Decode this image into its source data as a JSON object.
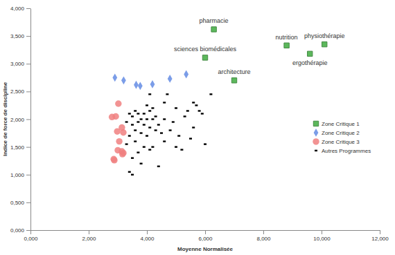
{
  "chart_data": {
    "type": "scatter",
    "x_label": "Moyenne Normalisée",
    "y_label": "Indice de force de discipline",
    "xlim": [
      0,
      12
    ],
    "ylim": [
      0,
      4
    ],
    "xticks": [
      {
        "value": 0,
        "label": "0,000"
      },
      {
        "value": 2,
        "label": "2,000"
      },
      {
        "value": 4,
        "label": "4,000"
      },
      {
        "value": 6,
        "label": "6,000"
      },
      {
        "value": 8,
        "label": "8,000"
      },
      {
        "value": 10,
        "label": "10,000"
      },
      {
        "value": 12,
        "label": "12,000"
      }
    ],
    "yticks": [
      {
        "value": 0,
        "label": "0,000"
      },
      {
        "value": 0.5,
        "label": "0,500"
      },
      {
        "value": 1,
        "label": "1,000"
      },
      {
        "value": 1.5,
        "label": "1,500"
      },
      {
        "value": 2,
        "label": "2,000"
      },
      {
        "value": 2.5,
        "label": "2,500"
      },
      {
        "value": 3,
        "label": "3,000"
      },
      {
        "value": 3.5,
        "label": "3,500"
      },
      {
        "value": 4,
        "label": "4,000"
      }
    ],
    "grid": false,
    "legend": "right",
    "series": [
      {
        "name": "Zone Critique 1",
        "color": "#5cb85c",
        "marker": "square",
        "x": [
          6.3,
          8.8,
          10.1,
          9.6,
          6.0,
          7.0
        ],
        "values": [
          3.62,
          3.33,
          3.35,
          3.18,
          3.11,
          2.7
        ],
        "labels": [
          "pharmacie",
          "nutrition",
          "physiothérapie",
          "ergothérapie",
          "sciences biomédicales",
          "architecture"
        ]
      },
      {
        "name": "Zone Critique 2",
        "color": "#7b9de8",
        "marker": "diamond",
        "x": [
          2.9,
          3.2,
          3.63,
          3.77,
          4.19,
          4.79,
          5.35
        ],
        "values": [
          2.75,
          2.7,
          2.62,
          2.6,
          2.63,
          2.73,
          2.81
        ]
      },
      {
        "name": "Zone Critique 3",
        "color": "#f08080",
        "marker": "circle",
        "x": [
          3.02,
          2.8,
          2.93,
          3.14,
          2.98,
          3.19,
          3.05,
          3.0,
          3.14,
          3.19,
          2.88,
          2.86,
          3.16
        ],
        "values": [
          2.28,
          2.04,
          2.05,
          1.85,
          1.78,
          1.76,
          1.6,
          1.44,
          1.42,
          1.39,
          1.26,
          1.28,
          1.37
        ]
      },
      {
        "name": "Autres Programmes",
        "color": "#000000",
        "marker": "dash",
        "x": [
          3.4,
          3.5,
          3.8,
          4.4,
          3.5,
          3.7,
          3.3,
          3.6,
          3.9,
          4.1,
          4.2,
          4.6,
          5.0,
          5.2,
          6.0,
          5.5,
          3.4,
          3.6,
          3.8,
          4.0,
          4.3,
          4.5,
          4.8,
          5.1,
          3.5,
          3.7,
          3.9,
          4.1,
          4.2,
          4.4,
          4.6,
          3.5,
          3.7,
          3.9,
          4.0,
          4.1,
          3.3,
          3.6,
          3.4,
          4.0,
          4.2,
          4.6,
          5.0,
          5.4,
          5.6,
          5.7,
          5.8,
          6.2,
          4.7,
          4.1,
          5.3,
          5.6,
          5.9,
          4.9,
          3.8,
          4.3
        ],
        "values": [
          1.05,
          1.0,
          1.2,
          1.15,
          1.3,
          1.4,
          1.55,
          1.6,
          1.5,
          1.45,
          1.5,
          1.6,
          1.5,
          1.45,
          1.55,
          1.65,
          1.7,
          1.8,
          1.75,
          1.7,
          1.8,
          1.75,
          1.8,
          1.7,
          1.9,
          1.95,
          1.9,
          1.85,
          2.0,
          1.9,
          2.0,
          2.05,
          2.1,
          2.1,
          2.0,
          2.15,
          1.95,
          2.15,
          2.1,
          2.25,
          2.2,
          2.3,
          2.2,
          2.15,
          2.3,
          2.25,
          2.15,
          2.45,
          2.45,
          2.45,
          2.05,
          1.85,
          2.1,
          1.95,
          2.0,
          2.05
        ]
      }
    ]
  }
}
